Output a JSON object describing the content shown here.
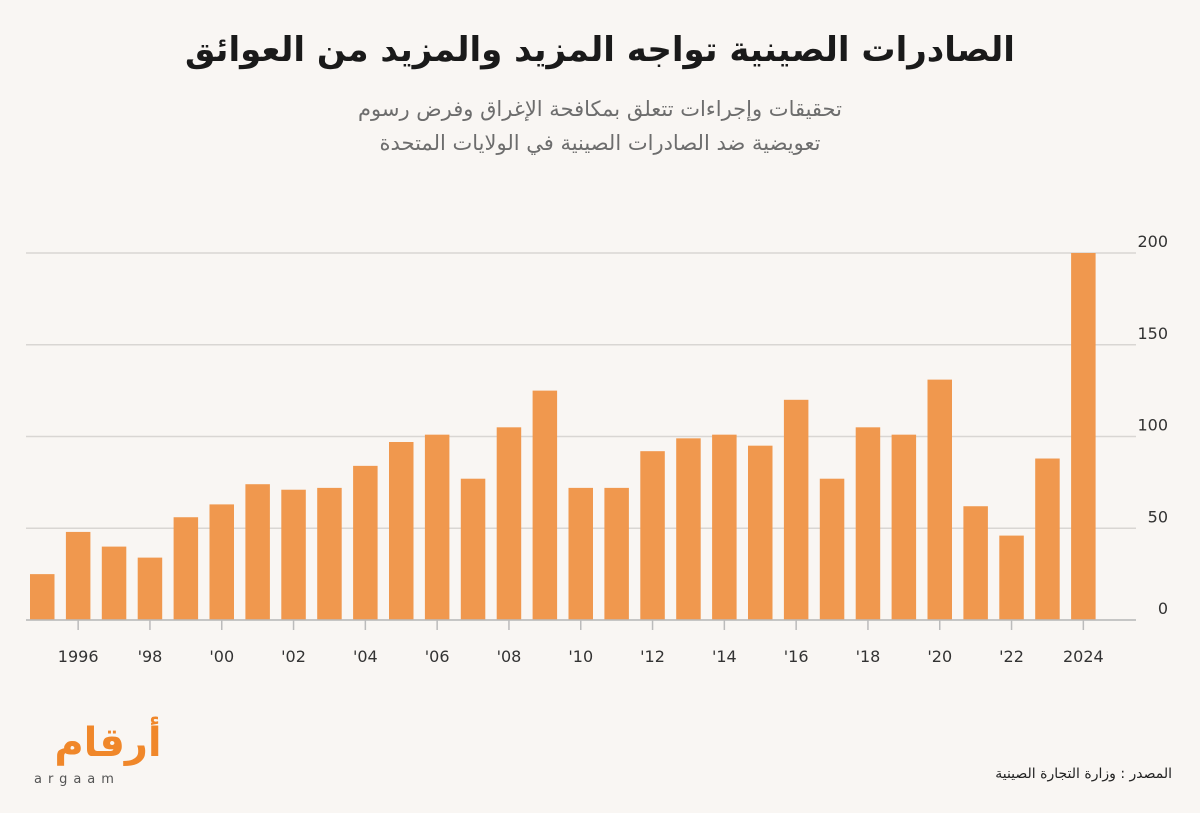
{
  "title": "الصادرات الصينية تواجه المزيد والمزيد من العوائق",
  "subtitle": {
    "line1": "تحقيقات وإجراءات تتعلق بمكافحة الإغراق وفرض رسوم",
    "line2": "تعويضية ضد الصادرات الصينية في الولايات المتحدة"
  },
  "source": "المصدر : وزارة التجارة الصينية",
  "logo": {
    "arabic": "أرقام",
    "latin": "argaam"
  },
  "colors": {
    "bar": "#f0984e",
    "grid": "#d9d6d3",
    "text": "#333333"
  },
  "chart_data": {
    "type": "bar",
    "title": "",
    "xlabel": "",
    "ylabel": "",
    "grid": true,
    "ylim": [
      0,
      200
    ],
    "yticks": [
      "0",
      "50",
      "100",
      "150",
      "200"
    ],
    "ytick_values": [
      0,
      50,
      100,
      150,
      200
    ],
    "categories": [
      "1995",
      "1996",
      "1997",
      "1998",
      "1999",
      "2000",
      "2001",
      "2002",
      "2003",
      "2004",
      "2005",
      "2006",
      "2007",
      "2008",
      "2009",
      "2010",
      "2011",
      "2012",
      "2013",
      "2014",
      "2015",
      "2016",
      "2017",
      "2018",
      "2019",
      "2020",
      "2021",
      "2022",
      "2023",
      "2024"
    ],
    "values": [
      25,
      48,
      40,
      34,
      56,
      63,
      74,
      71,
      72,
      84,
      97,
      101,
      77,
      105,
      125,
      72,
      72,
      92,
      99,
      101,
      95,
      120,
      77,
      105,
      101,
      131,
      62,
      46,
      88,
      200
    ],
    "xtick_labels": [
      "",
      "1996",
      "",
      "'98",
      "",
      "'00",
      "",
      "'02",
      "",
      "'04",
      "",
      "'06",
      "",
      "'08",
      "",
      "'10",
      "",
      "'12",
      "",
      "'14",
      "",
      "'16",
      "",
      "'18",
      "",
      "'20",
      "",
      "'22",
      "",
      "2024"
    ]
  }
}
